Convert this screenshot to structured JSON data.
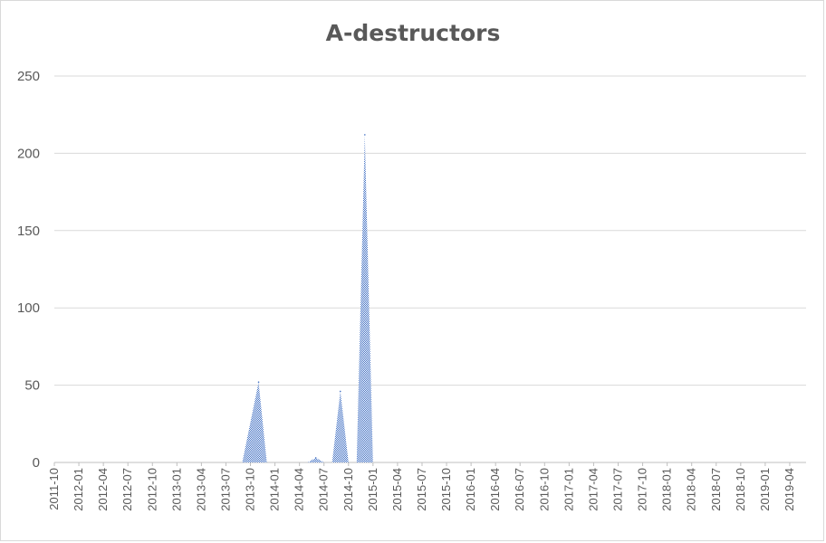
{
  "chart_data": {
    "type": "area",
    "title": "A-destructors",
    "xlabel": "",
    "ylabel": "",
    "ylim": [
      0,
      250
    ],
    "yticks": [
      0,
      50,
      100,
      150,
      200,
      250
    ],
    "grid": true,
    "legend": "none",
    "x_tick_labels": [
      "2011-10",
      "2012-01",
      "2012-04",
      "2012-07",
      "2012-10",
      "2013-01",
      "2013-04",
      "2013-07",
      "2013-10",
      "2014-01",
      "2014-04",
      "2014-07",
      "2014-10",
      "2015-01",
      "2015-04",
      "2015-07",
      "2015-10",
      "2016-01",
      "2016-04",
      "2016-07",
      "2016-10",
      "2017-01",
      "2017-04",
      "2017-07",
      "2017-10",
      "2018-01",
      "2018-04",
      "2018-07",
      "2018-10",
      "2019-01",
      "2019-04"
    ],
    "x_start": "2011-10",
    "x_end": "2019-06",
    "series": [
      {
        "color": "#4472c4",
        "points": [
          {
            "x": "2011-10",
            "y": 0
          },
          {
            "x": "2013-09",
            "y": 0
          },
          {
            "x": "2013-11",
            "y": 52
          },
          {
            "x": "2013-12",
            "y": 0
          },
          {
            "x": "2014-05",
            "y": 0
          },
          {
            "x": "2014-06",
            "y": 3
          },
          {
            "x": "2014-07",
            "y": 0
          },
          {
            "x": "2014-08",
            "y": 0
          },
          {
            "x": "2014-09",
            "y": 46
          },
          {
            "x": "2014-10",
            "y": 0
          },
          {
            "x": "2014-11",
            "y": 0
          },
          {
            "x": "2014-12",
            "y": 212
          },
          {
            "x": "2015-01",
            "y": 0
          },
          {
            "x": "2019-06",
            "y": 0
          }
        ]
      }
    ]
  }
}
